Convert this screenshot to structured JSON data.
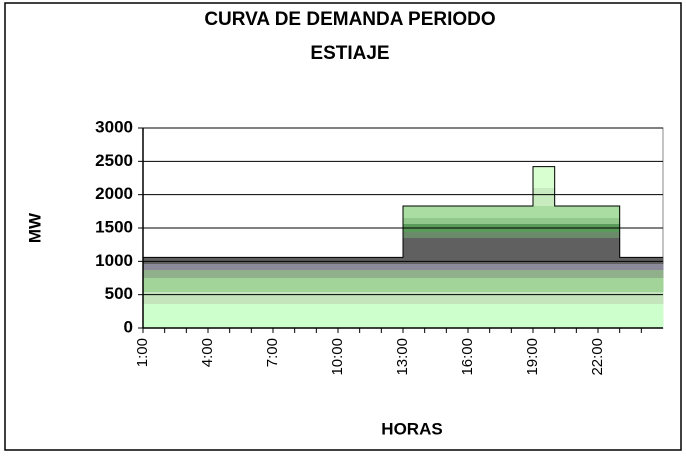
{
  "chart_data": {
    "type": "step",
    "title": [
      "CURVA DE DEMANDA PERIODO",
      "ESTIAJE"
    ],
    "x_label": "HORAS",
    "y_label": "MW",
    "categories": [
      "1:00",
      null,
      null,
      "4:00",
      null,
      null,
      "7:00",
      null,
      null,
      "10:00",
      null,
      null,
      "13:00",
      null,
      null,
      "16:00",
      null,
      null,
      "19:00",
      null,
      null,
      "22:00",
      null,
      null
    ],
    "values": [
      1060,
      1060,
      1060,
      1060,
      1060,
      1060,
      1060,
      1060,
      1060,
      1060,
      1060,
      1060,
      1830,
      1830,
      1830,
      1830,
      1830,
      1830,
      2420,
      1830,
      1830,
      1830,
      1060,
      1060
    ],
    "ylim": [
      0,
      3000
    ],
    "yticks": [
      0,
      500,
      1000,
      1500,
      2000,
      2500,
      3000
    ],
    "grid": true
  }
}
